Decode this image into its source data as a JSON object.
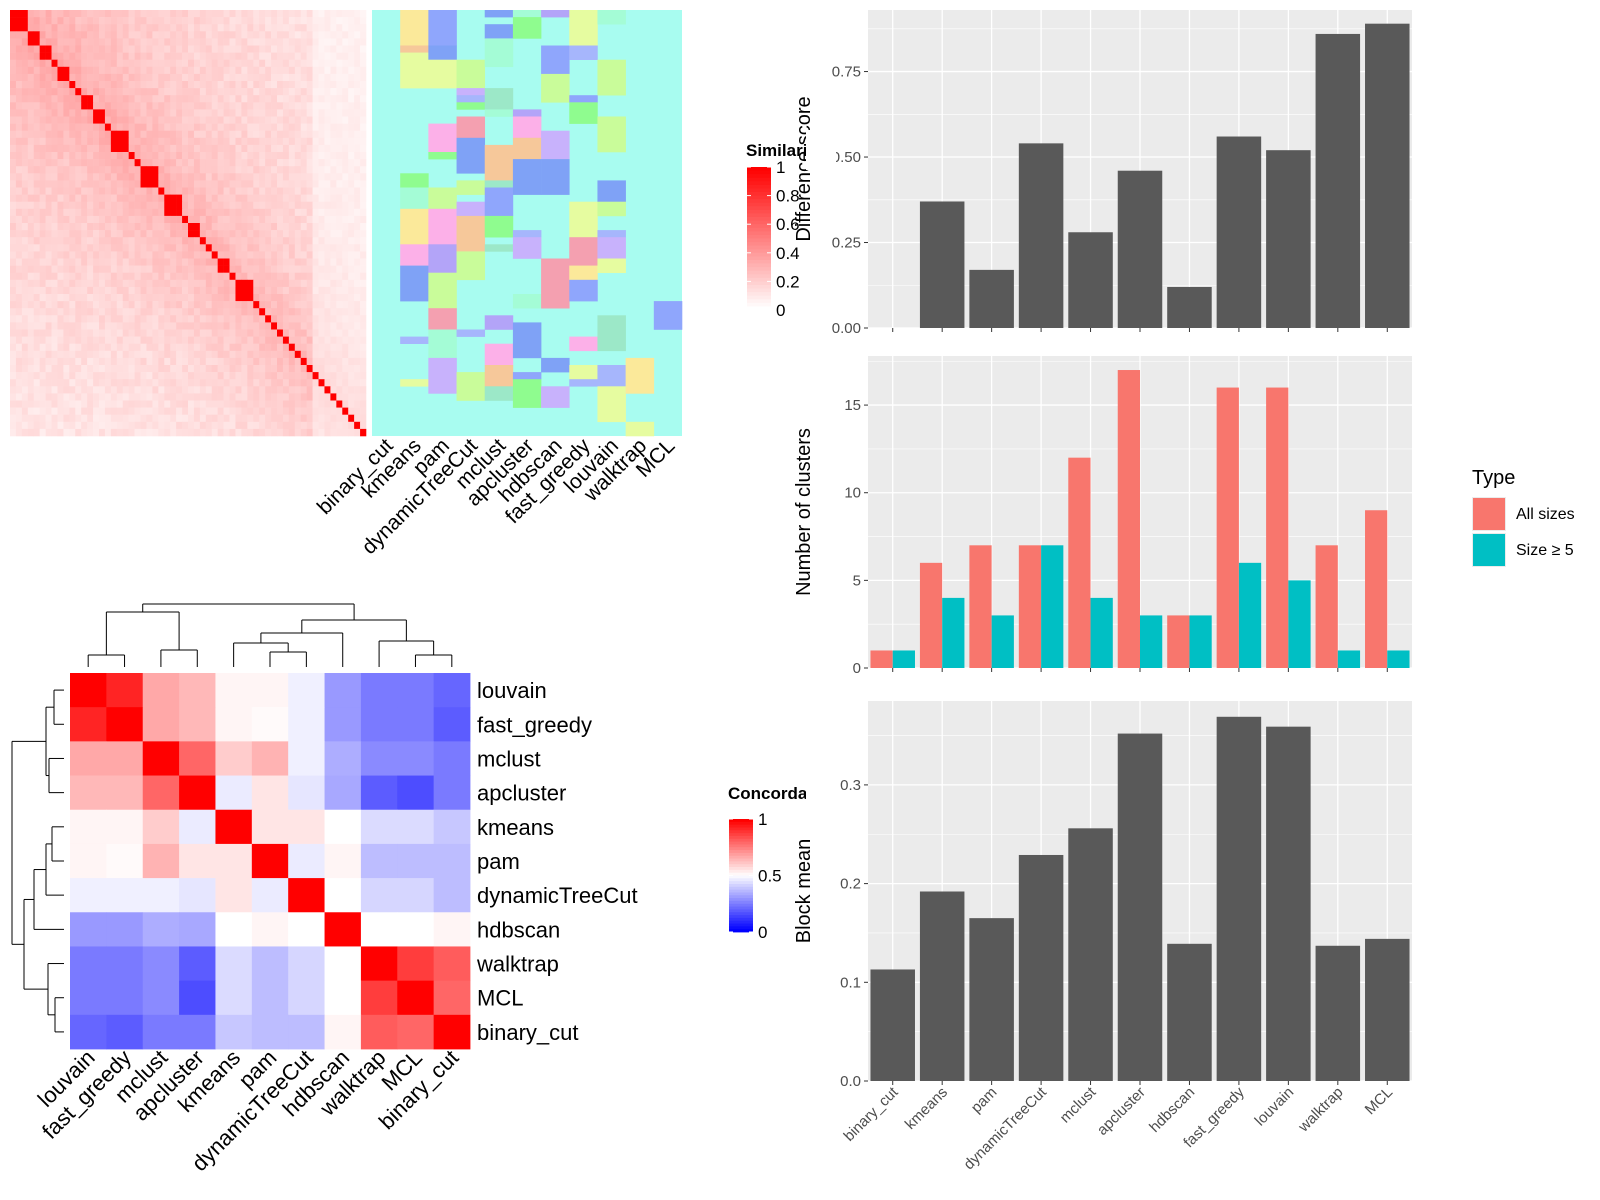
{
  "similarity_legend": {
    "title": "Similarity",
    "ticks": [
      "1",
      "0.8",
      "0.6",
      "0.4",
      "0.2",
      "0"
    ]
  },
  "concordance_legend": {
    "title": "Concordance",
    "ticks": [
      "1",
      "0.5",
      "0"
    ]
  },
  "colors": {
    "panel_bg": "#ebebeb",
    "grid": "#ffffff",
    "bar_gray": "#595959",
    "all_sizes": "#f8766d",
    "size_ge5": "#00bfc4",
    "heat_high": "#ff0000",
    "heat_mid": "#ffffff",
    "heat_low": "#0000ff"
  },
  "chart_data": [
    {
      "type": "heatmap",
      "name": "similarity",
      "n": 60,
      "scale": [
        0,
        1
      ],
      "diagonal_blocks": [
        3,
        2,
        2,
        1,
        2,
        1,
        1,
        2,
        2,
        1,
        3,
        1,
        1,
        3,
        1,
        3,
        1,
        2,
        1,
        1,
        1,
        2,
        1,
        3,
        1,
        1,
        1,
        1,
        1,
        1,
        1,
        1,
        1,
        1,
        1,
        1,
        1,
        1,
        1
      ]
    },
    {
      "type": "heatmap",
      "name": "cluster-membership",
      "columns": [
        "binary_cut",
        "kmeans",
        "pam",
        "dynamicTreeCut",
        "mclust",
        "apcluster",
        "hdbscan",
        "fast_greedy",
        "louvain",
        "walktrap",
        "MCL"
      ]
    },
    {
      "type": "heatmap",
      "name": "concordance",
      "rows": [
        "louvain",
        "fast_greedy",
        "mclust",
        "apcluster",
        "kmeans",
        "pam",
        "dynamicTreeCut",
        "hdbscan",
        "walktrap",
        "MCL",
        "binary_cut"
      ],
      "columns": [
        "louvain",
        "fast_greedy",
        "mclust",
        "apcluster",
        "kmeans",
        "pam",
        "dynamicTreeCut",
        "hdbscan",
        "walktrap",
        "MCL",
        "binary_cut"
      ],
      "scale": [
        0,
        1
      ],
      "values": [
        [
          1.0,
          0.93,
          0.67,
          0.64,
          0.52,
          0.52,
          0.47,
          0.3,
          0.24,
          0.24,
          0.2
        ],
        [
          0.93,
          1.0,
          0.67,
          0.64,
          0.52,
          0.51,
          0.47,
          0.3,
          0.24,
          0.24,
          0.18
        ],
        [
          0.67,
          0.67,
          1.0,
          0.8,
          0.6,
          0.65,
          0.47,
          0.34,
          0.27,
          0.27,
          0.24
        ],
        [
          0.64,
          0.64,
          0.8,
          1.0,
          0.46,
          0.55,
          0.45,
          0.33,
          0.18,
          0.15,
          0.24
        ],
        [
          0.52,
          0.52,
          0.6,
          0.46,
          1.0,
          0.55,
          0.55,
          0.5,
          0.43,
          0.43,
          0.39
        ],
        [
          0.52,
          0.51,
          0.65,
          0.55,
          0.55,
          1.0,
          0.46,
          0.52,
          0.37,
          0.37,
          0.37
        ],
        [
          0.47,
          0.47,
          0.47,
          0.45,
          0.55,
          0.46,
          1.0,
          0.5,
          0.42,
          0.42,
          0.37
        ],
        [
          0.3,
          0.3,
          0.34,
          0.33,
          0.5,
          0.52,
          0.5,
          1.0,
          0.5,
          0.5,
          0.52
        ],
        [
          0.24,
          0.24,
          0.27,
          0.18,
          0.43,
          0.37,
          0.42,
          0.5,
          1.0,
          0.88,
          0.82
        ],
        [
          0.24,
          0.24,
          0.27,
          0.15,
          0.43,
          0.37,
          0.42,
          0.5,
          0.88,
          1.0,
          0.8
        ],
        [
          0.2,
          0.18,
          0.24,
          0.24,
          0.39,
          0.37,
          0.37,
          0.52,
          0.82,
          0.8,
          1.0
        ]
      ]
    },
    {
      "type": "bar",
      "name": "difference-score",
      "categories": [
        "binary_cut",
        "kmeans",
        "pam",
        "dynamicTreeCut",
        "mclust",
        "apcluster",
        "hdbscan",
        "fast_greedy",
        "louvain",
        "walktrap",
        "MCL"
      ],
      "values": [
        0.0,
        0.37,
        0.17,
        0.54,
        0.28,
        0.46,
        0.12,
        0.56,
        0.52,
        0.86,
        0.89
      ],
      "ylabel": "Difference score",
      "yticks": [
        0,
        0.25,
        0.5,
        0.75
      ],
      "ytick_labels": [
        "0.00",
        "0.25",
        "0.50",
        "0.75"
      ],
      "ylim": [
        0,
        0.93
      ]
    },
    {
      "type": "bar",
      "name": "number-of-clusters",
      "categories": [
        "binary_cut",
        "kmeans",
        "pam",
        "dynamicTreeCut",
        "mclust",
        "apcluster",
        "hdbscan",
        "fast_greedy",
        "louvain",
        "walktrap",
        "MCL"
      ],
      "series": [
        {
          "name": "All sizes",
          "values": [
            1,
            6,
            7,
            7,
            12,
            17,
            3,
            16,
            16,
            7,
            9
          ]
        },
        {
          "name": "Size ≥ 5",
          "values": [
            1,
            4,
            3,
            7,
            4,
            3,
            3,
            6,
            5,
            1,
            1
          ]
        }
      ],
      "ylabel": "Number of clusters",
      "yticks": [
        0,
        5,
        10,
        15
      ],
      "ytick_labels": [
        "0",
        "5",
        "10",
        "15"
      ],
      "ylim": [
        0,
        17.8
      ],
      "legend": {
        "title": "Type",
        "position": "right"
      }
    },
    {
      "type": "bar",
      "name": "block-mean",
      "categories": [
        "binary_cut",
        "kmeans",
        "pam",
        "dynamicTreeCut",
        "mclust",
        "apcluster",
        "hdbscan",
        "fast_greedy",
        "louvain",
        "walktrap",
        "MCL"
      ],
      "values": [
        0.113,
        0.192,
        0.165,
        0.229,
        0.256,
        0.352,
        0.139,
        0.369,
        0.359,
        0.137,
        0.144
      ],
      "ylabel": "Block mean",
      "yticks": [
        0,
        0.1,
        0.2,
        0.3
      ],
      "ytick_labels": [
        "0.0",
        "0.1",
        "0.2",
        "0.3"
      ],
      "ylim": [
        0,
        0.385
      ]
    }
  ]
}
